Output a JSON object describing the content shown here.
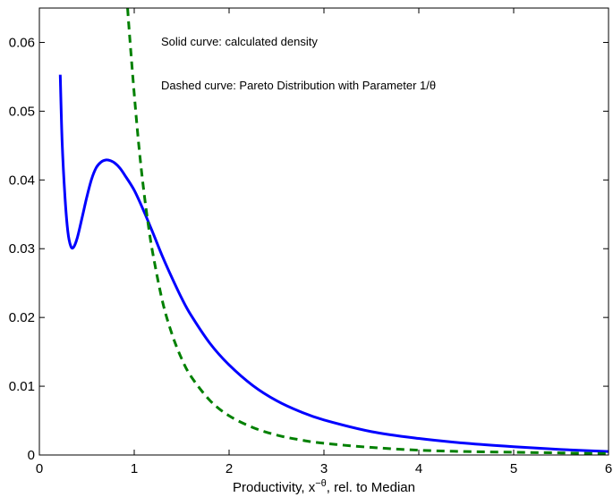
{
  "chart_data": {
    "type": "line",
    "title": "",
    "xlabel": "Productivity, x",
    "xlabel_superscript": "−θ",
    "xlabel_suffix": ", rel. to Median",
    "ylabel": "",
    "xlim": [
      0,
      6
    ],
    "ylim": [
      0,
      0.065
    ],
    "xticks": [
      0,
      1,
      2,
      3,
      4,
      5,
      6
    ],
    "xtick_labels": [
      "0",
      "1",
      "2",
      "3",
      "4",
      "5",
      "6"
    ],
    "yticks": [
      0,
      0.01,
      0.02,
      0.03,
      0.04,
      0.05,
      0.06
    ],
    "ytick_labels": [
      "0",
      "0.01",
      "0.02",
      "0.03",
      "0.04",
      "0.05",
      "0.06"
    ],
    "grid": false,
    "annotations": [
      "Solid curve: calculated density",
      "Dashed curve: Pareto Distribution with Parameter 1/θ"
    ],
    "series": [
      {
        "style": "solid",
        "color": "#0000ff",
        "x": [
          0.22,
          0.24,
          0.27,
          0.3,
          0.33,
          0.36,
          0.4,
          0.45,
          0.5,
          0.55,
          0.6,
          0.65,
          0.7,
          0.75,
          0.8,
          0.85,
          0.9,
          1.0,
          1.1,
          1.2,
          1.3,
          1.4,
          1.5,
          1.6,
          1.8,
          2.0,
          2.25,
          2.5,
          2.75,
          3.0,
          3.5,
          4.0,
          4.5,
          5.0,
          5.5,
          6.0
        ],
        "y": [
          0.0553,
          0.0455,
          0.0375,
          0.0325,
          0.0304,
          0.0302,
          0.0316,
          0.0345,
          0.0375,
          0.0401,
          0.0418,
          0.0426,
          0.0429,
          0.0428,
          0.0424,
          0.0417,
          0.0407,
          0.0385,
          0.0355,
          0.0322,
          0.0288,
          0.0257,
          0.0228,
          0.0203,
          0.0162,
          0.0131,
          0.0101,
          0.0079,
          0.0063,
          0.0051,
          0.0034,
          0.0024,
          0.0017,
          0.0012,
          0.0008,
          0.0005
        ]
      },
      {
        "style": "dashed",
        "color": "#008000",
        "x": [
          0.93,
          0.95,
          1.0,
          1.05,
          1.1,
          1.15,
          1.2,
          1.3,
          1.4,
          1.5,
          1.6,
          1.8,
          2.0,
          2.25,
          2.5,
          2.75,
          3.0,
          3.5,
          4.0,
          4.5,
          5.0,
          5.5,
          6.0
        ],
        "y": [
          0.065,
          0.0612,
          0.0525,
          0.0448,
          0.0385,
          0.0333,
          0.029,
          0.0222,
          0.0175,
          0.014,
          0.0114,
          0.0079,
          0.0057,
          0.004,
          0.0029,
          0.0022,
          0.0017,
          0.0011,
          0.0007,
          0.0005,
          0.0004,
          0.0003,
          0.0002
        ]
      }
    ]
  }
}
